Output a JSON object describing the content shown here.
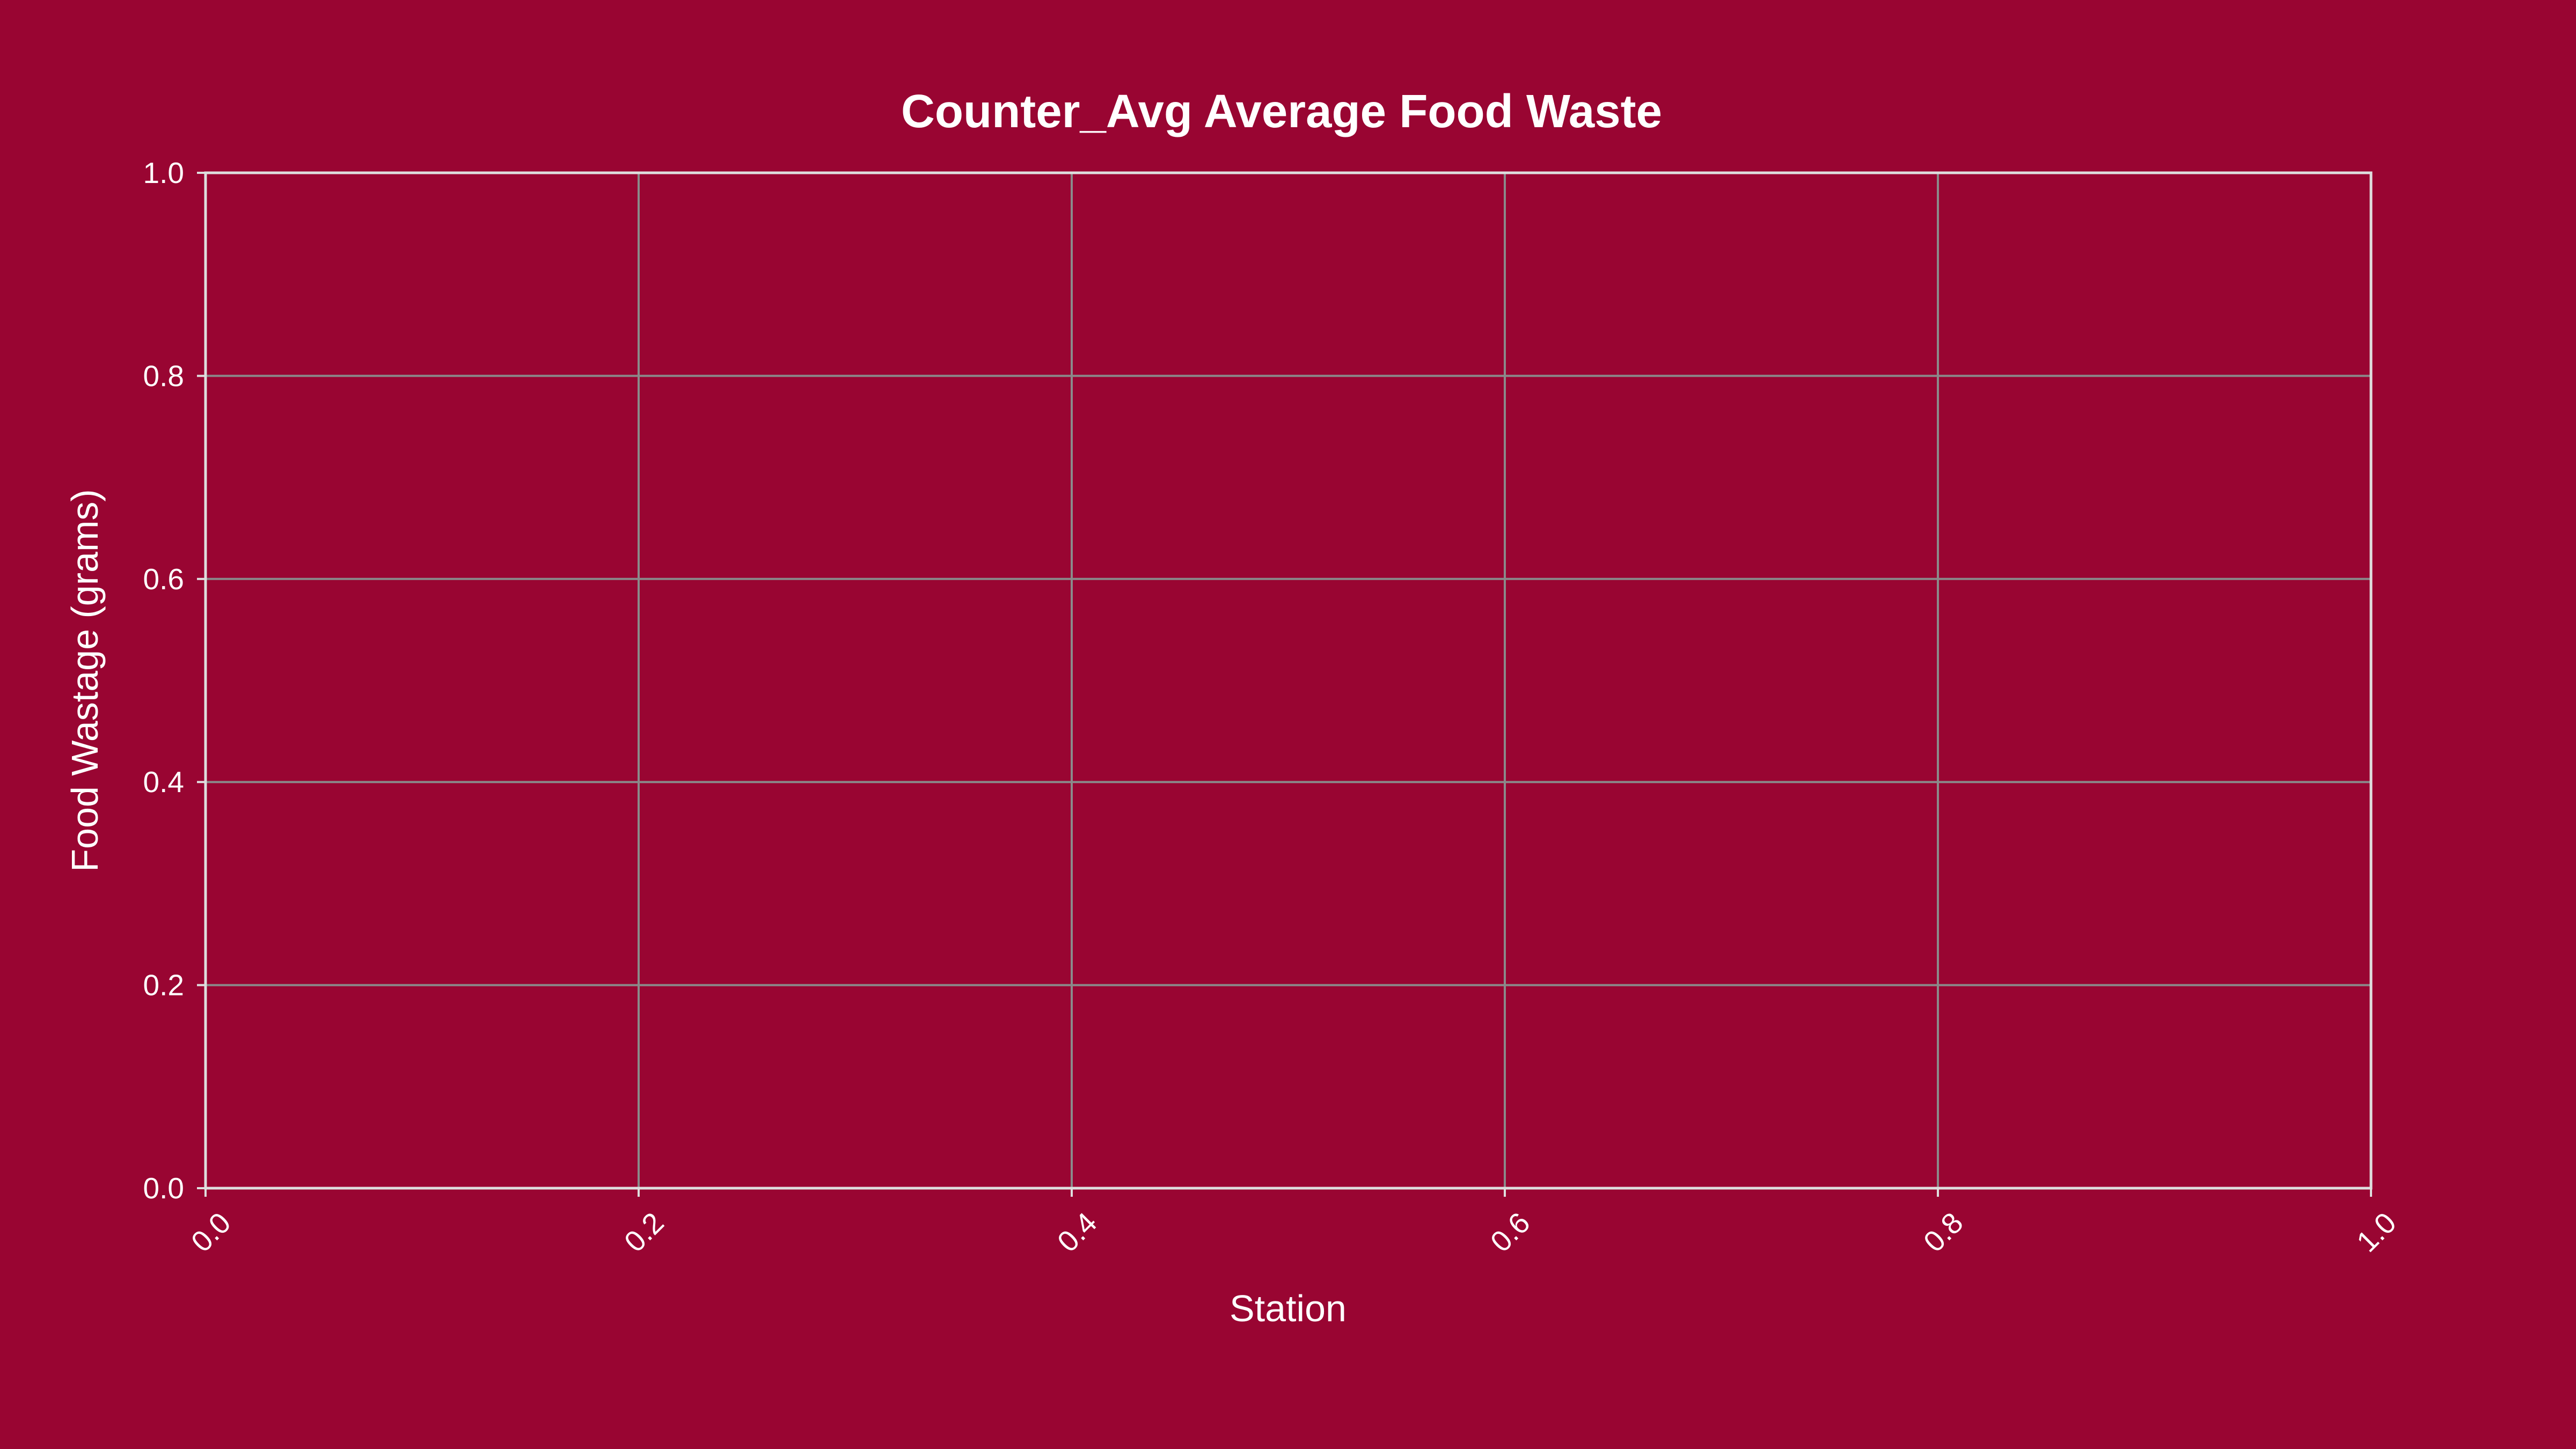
{
  "chart_data": {
    "type": "bar",
    "title": "Counter_Avg Average Food Waste",
    "xlabel": "Station",
    "ylabel": "Food Wastage (grams)",
    "categories": [],
    "values": [],
    "xlim": [
      0.0,
      1.0
    ],
    "ylim": [
      0.0,
      1.0
    ],
    "x_ticks": [
      "0.0",
      "0.2",
      "0.4",
      "0.6",
      "0.8",
      "1.0"
    ],
    "y_ticks": [
      "0.0",
      "0.2",
      "0.4",
      "0.6",
      "0.8",
      "1.0"
    ],
    "x_tick_rotation": -45,
    "grid": true,
    "legend": "none"
  },
  "colors": {
    "background": "#990532",
    "plot_background": "#990532",
    "grid": "#8a8a8a",
    "frame": "#dedede",
    "text": "#ffffff"
  }
}
